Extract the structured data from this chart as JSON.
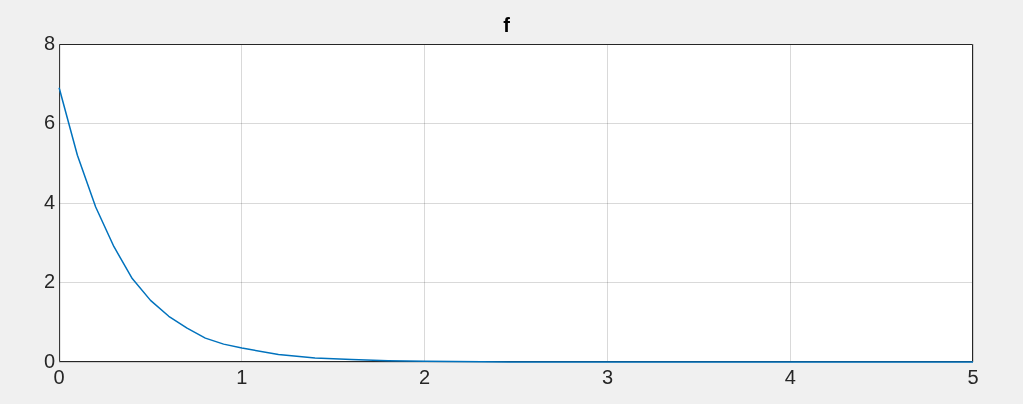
{
  "chart_data": {
    "type": "line",
    "title": "f",
    "x": [
      0,
      0.1,
      0.2,
      0.3,
      0.4,
      0.5,
      0.6,
      0.7,
      0.8,
      0.9,
      1.0,
      1.2,
      1.4,
      1.6,
      1.8,
      2.0,
      2.5,
      3,
      3.5,
      4,
      4.5,
      5
    ],
    "series": [
      {
        "color": "#0072bd",
        "values": [
          6.9,
          5.2,
          3.9,
          2.9,
          2.1,
          1.55,
          1.15,
          0.85,
          0.6,
          0.45,
          0.35,
          0.19,
          0.1,
          0.06,
          0.03,
          0.02,
          0,
          0,
          0,
          0,
          0,
          0
        ]
      }
    ],
    "xlim": [
      0,
      5
    ],
    "xticks": [
      0,
      1,
      2,
      3,
      4,
      5
    ],
    "ylim": [
      0,
      8
    ],
    "yticks": [
      0,
      2,
      4,
      6,
      8
    ],
    "grid": true,
    "legend": false,
    "marker": "none",
    "line_style": "solid"
  }
}
